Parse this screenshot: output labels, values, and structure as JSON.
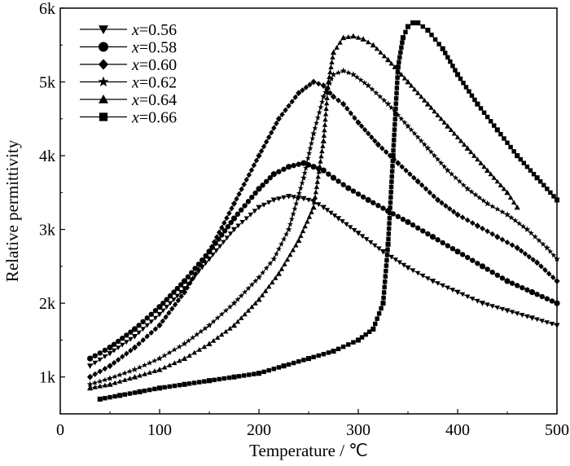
{
  "chart_data": {
    "type": "scatter",
    "title": "",
    "xlabel": "Temperature / ℃",
    "ylabel": "Relative permittivity",
    "xlim": [
      0,
      500
    ],
    "ylim": [
      500,
      6000
    ],
    "xticks": [
      0,
      100,
      200,
      300,
      400,
      500
    ],
    "xtick_labels": [
      "0",
      "100",
      "200",
      "300",
      "400",
      "500"
    ],
    "yticks": [
      1000,
      2000,
      3000,
      4000,
      5000,
      6000
    ],
    "ytick_labels": [
      "1k",
      "2k",
      "3k",
      "4k",
      "5k",
      "6k"
    ],
    "grid": false,
    "legend_position": "top-left",
    "series": [
      {
        "name": "x=0.56",
        "label_var": "x",
        "label_value": "=0.56",
        "marker": "triangle-down",
        "x": [
          30,
          50,
          75,
          100,
          125,
          150,
          175,
          200,
          215,
          230,
          245,
          255,
          265,
          280,
          300,
          325,
          350,
          375,
          400,
          425,
          450,
          475,
          500
        ],
        "y": [
          1150,
          1320,
          1550,
          1850,
          2200,
          2600,
          3000,
          3300,
          3400,
          3450,
          3420,
          3380,
          3300,
          3150,
          2950,
          2700,
          2480,
          2300,
          2150,
          2000,
          1900,
          1800,
          1700
        ]
      },
      {
        "name": "x=0.58",
        "label_var": "x",
        "label_value": "=0.58",
        "marker": "circle",
        "x": [
          30,
          50,
          75,
          100,
          125,
          150,
          175,
          200,
          215,
          230,
          245,
          255,
          265,
          275,
          290,
          310,
          330,
          350,
          375,
          400,
          425,
          450,
          475,
          500
        ],
        "y": [
          1250,
          1400,
          1650,
          1950,
          2300,
          2700,
          3150,
          3550,
          3750,
          3850,
          3900,
          3850,
          3800,
          3700,
          3560,
          3400,
          3250,
          3100,
          2900,
          2700,
          2500,
          2300,
          2150,
          2000
        ]
      },
      {
        "name": "x=0.60",
        "label_var": "x",
        "label_value": "=0.60",
        "marker": "diamond",
        "x": [
          30,
          50,
          75,
          100,
          125,
          150,
          175,
          200,
          220,
          240,
          255,
          265,
          275,
          285,
          300,
          320,
          340,
          360,
          380,
          400,
          420,
          440,
          460,
          480,
          500
        ],
        "y": [
          1000,
          1150,
          1400,
          1700,
          2150,
          2700,
          3350,
          4000,
          4500,
          4850,
          5000,
          4950,
          4800,
          4700,
          4450,
          4150,
          3900,
          3650,
          3400,
          3200,
          3050,
          2900,
          2750,
          2550,
          2300
        ]
      },
      {
        "name": "x=0.62",
        "label_var": "x",
        "label_value": "=0.62",
        "marker": "star",
        "x": [
          30,
          50,
          75,
          100,
          125,
          150,
          175,
          200,
          215,
          230,
          245,
          255,
          265,
          275,
          285,
          295,
          310,
          330,
          350,
          370,
          390,
          410,
          430,
          450,
          470,
          490,
          500
        ],
        "y": [
          900,
          980,
          1100,
          1250,
          1450,
          1700,
          2000,
          2350,
          2600,
          3000,
          3700,
          4300,
          4800,
          5100,
          5150,
          5100,
          4950,
          4700,
          4400,
          4100,
          3800,
          3550,
          3350,
          3200,
          3000,
          2750,
          2600
        ]
      },
      {
        "name": "x=0.64",
        "label_var": "x",
        "label_value": "=0.64",
        "marker": "triangle-up",
        "x": [
          30,
          50,
          75,
          100,
          125,
          150,
          175,
          200,
          220,
          240,
          255,
          265,
          270,
          275,
          285,
          295,
          305,
          315,
          330,
          350,
          370,
          390,
          410,
          430,
          450,
          460
        ],
        "y": [
          850,
          900,
          1000,
          1100,
          1250,
          1450,
          1700,
          2050,
          2400,
          2850,
          3300,
          4200,
          5000,
          5400,
          5600,
          5620,
          5580,
          5500,
          5300,
          5000,
          4700,
          4400,
          4100,
          3800,
          3500,
          3300
        ]
      },
      {
        "name": "x=0.66",
        "label_var": "x",
        "label_value": "=0.66",
        "marker": "square",
        "x": [
          40,
          60,
          80,
          100,
          125,
          150,
          175,
          200,
          225,
          250,
          275,
          300,
          315,
          325,
          330,
          335,
          340,
          345,
          350,
          355,
          360,
          370,
          385,
          400,
          420,
          440,
          460,
          480,
          500
        ],
        "y": [
          700,
          750,
          800,
          850,
          900,
          950,
          1000,
          1050,
          1150,
          1250,
          1350,
          1500,
          1650,
          2000,
          2800,
          4000,
          5200,
          5600,
          5750,
          5800,
          5800,
          5700,
          5450,
          5100,
          4700,
          4350,
          4000,
          3700,
          3400
        ]
      }
    ]
  }
}
